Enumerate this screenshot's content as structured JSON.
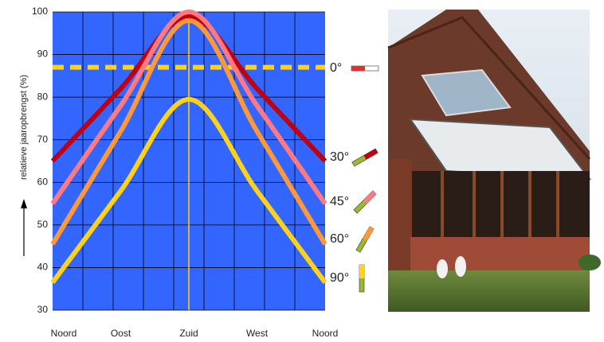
{
  "chart_data": {
    "type": "line",
    "y_label": "relatieve jaaropbrengst (%)",
    "categories": [
      "Noord",
      "Oost",
      "Zuid",
      "West",
      "Noord"
    ],
    "ylim": [
      30,
      100
    ],
    "yticks": [
      30,
      40,
      50,
      60,
      70,
      80,
      90,
      100
    ],
    "grid": true,
    "background": "#3366ff",
    "series": [
      {
        "name": "0°",
        "color": "#ffd21a",
        "dashed": true,
        "values": [
          87,
          87,
          87,
          87,
          87
        ]
      },
      {
        "name": "30°",
        "color": "#c00010",
        "values": [
          65,
          82,
          99,
          82,
          65
        ]
      },
      {
        "name": "45°",
        "color": "#ff7a80",
        "values": [
          55,
          78,
          100,
          78,
          55
        ]
      },
      {
        "name": "60°",
        "color": "#ff9838",
        "values": [
          45.5,
          72,
          98,
          72,
          45.5
        ]
      },
      {
        "name": "90°",
        "color": "#ffd21a",
        "values": [
          36.5,
          58,
          79.5,
          58,
          36.5
        ]
      }
    ]
  }
}
